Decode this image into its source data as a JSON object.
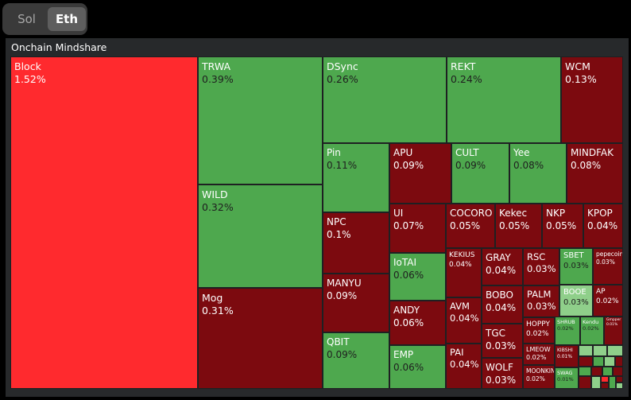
{
  "tabs": {
    "sol": "Sol",
    "eth": "Eth",
    "active": "eth"
  },
  "chart_title": "Onchain Mindshare",
  "colors": {
    "bright_red": "#ff2a2e",
    "red": "#7c0a0f",
    "green": "#4ea84e",
    "light_green": "#8fcf8a"
  },
  "chart_data": {
    "type": "treemap",
    "title": "Onchain Mindshare",
    "unit": "%",
    "items": [
      {
        "name": "Block",
        "value": 1.52,
        "label": "1.52%",
        "color": "bright_red"
      },
      {
        "name": "TRWA",
        "value": 0.39,
        "label": "0.39%",
        "color": "green"
      },
      {
        "name": "WILD",
        "value": 0.32,
        "label": "0.32%",
        "color": "green"
      },
      {
        "name": "Mog",
        "value": 0.31,
        "label": "0.31%",
        "color": "red"
      },
      {
        "name": "DSync",
        "value": 0.26,
        "label": "0.26%",
        "color": "green"
      },
      {
        "name": "REKT",
        "value": 0.24,
        "label": "0.24%",
        "color": "green"
      },
      {
        "name": "WCM",
        "value": 0.13,
        "label": "0.13%",
        "color": "red"
      },
      {
        "name": "Pin",
        "value": 0.11,
        "label": "0.11%",
        "color": "green"
      },
      {
        "name": "APU",
        "value": 0.09,
        "label": "0.09%",
        "color": "red"
      },
      {
        "name": "CULT",
        "value": 0.09,
        "label": "0.09%",
        "color": "green"
      },
      {
        "name": "Yee",
        "value": 0.08,
        "label": "0.08%",
        "color": "green"
      },
      {
        "name": "MINDFAK",
        "value": 0.08,
        "label": "0.08%",
        "color": "red"
      },
      {
        "name": "NPC",
        "value": 0.1,
        "label": "0.1%",
        "color": "red"
      },
      {
        "name": "MANYU",
        "value": 0.09,
        "label": "0.09%",
        "color": "red"
      },
      {
        "name": "QBIT",
        "value": 0.09,
        "label": "0.09%",
        "color": "green"
      },
      {
        "name": "UI",
        "value": 0.07,
        "label": "0.07%",
        "color": "red"
      },
      {
        "name": "COCORO",
        "value": 0.05,
        "label": "0.05%",
        "color": "red"
      },
      {
        "name": "Kekec",
        "value": 0.05,
        "label": "0.05%",
        "color": "red"
      },
      {
        "name": "NKP",
        "value": 0.05,
        "label": "0.05%",
        "color": "red"
      },
      {
        "name": "KPOP",
        "value": 0.04,
        "label": "0.04%",
        "color": "red"
      },
      {
        "name": "IoTAI",
        "value": 0.06,
        "label": "0.06%",
        "color": "green"
      },
      {
        "name": "ANDY",
        "value": 0.06,
        "label": "0.06%",
        "color": "red"
      },
      {
        "name": "EMP",
        "value": 0.06,
        "label": "0.06%",
        "color": "green"
      },
      {
        "name": "KEKIUS",
        "value": 0.04,
        "label": "0.04%",
        "color": "red"
      },
      {
        "name": "AVM",
        "value": 0.04,
        "label": "0.04%",
        "color": "red"
      },
      {
        "name": "PAI",
        "value": 0.04,
        "label": "0.04%",
        "color": "red"
      },
      {
        "name": "GRAY",
        "value": 0.04,
        "label": "0.04%",
        "color": "red"
      },
      {
        "name": "BOBO",
        "value": 0.04,
        "label": "0.04%",
        "color": "red"
      },
      {
        "name": "TGC",
        "value": 0.03,
        "label": "0.03%",
        "color": "red"
      },
      {
        "name": "WOLF",
        "value": 0.03,
        "label": "0.03%",
        "color": "red"
      },
      {
        "name": "RSC",
        "value": 0.03,
        "label": "0.03%",
        "color": "red"
      },
      {
        "name": "PALM",
        "value": 0.03,
        "label": "0.03%",
        "color": "red"
      },
      {
        "name": "HOPPY",
        "value": 0.02,
        "label": "0.02%",
        "color": "red"
      },
      {
        "name": "LMEOW",
        "value": 0.02,
        "label": "0.02%",
        "color": "red"
      },
      {
        "name": "MOONKIN",
        "value": 0.02,
        "label": "0.02%",
        "color": "red"
      },
      {
        "name": "SBET",
        "value": 0.03,
        "label": "0.03%",
        "color": "green"
      },
      {
        "name": "pepecoin",
        "value": 0.03,
        "label": "0.03%",
        "color": "red"
      },
      {
        "name": "BOOE",
        "value": 0.03,
        "label": "0.03%",
        "color": "light_green"
      },
      {
        "name": "AP",
        "value": 0.02,
        "label": "0.02%",
        "color": "red"
      },
      {
        "name": "SHRUB",
        "value": 0.02,
        "label": "0.02%",
        "color": "green"
      },
      {
        "name": "Kendu",
        "value": 0.02,
        "label": "0.02%",
        "color": "green"
      },
      {
        "name": "Gmpper",
        "value": 0.01,
        "label": "0.01%",
        "color": "red"
      },
      {
        "name": "KIBSHI",
        "value": 0.01,
        "label": "0.01%",
        "color": "red"
      },
      {
        "name": "SWAG",
        "value": 0.01,
        "label": "0.01%",
        "color": "green"
      }
    ]
  }
}
